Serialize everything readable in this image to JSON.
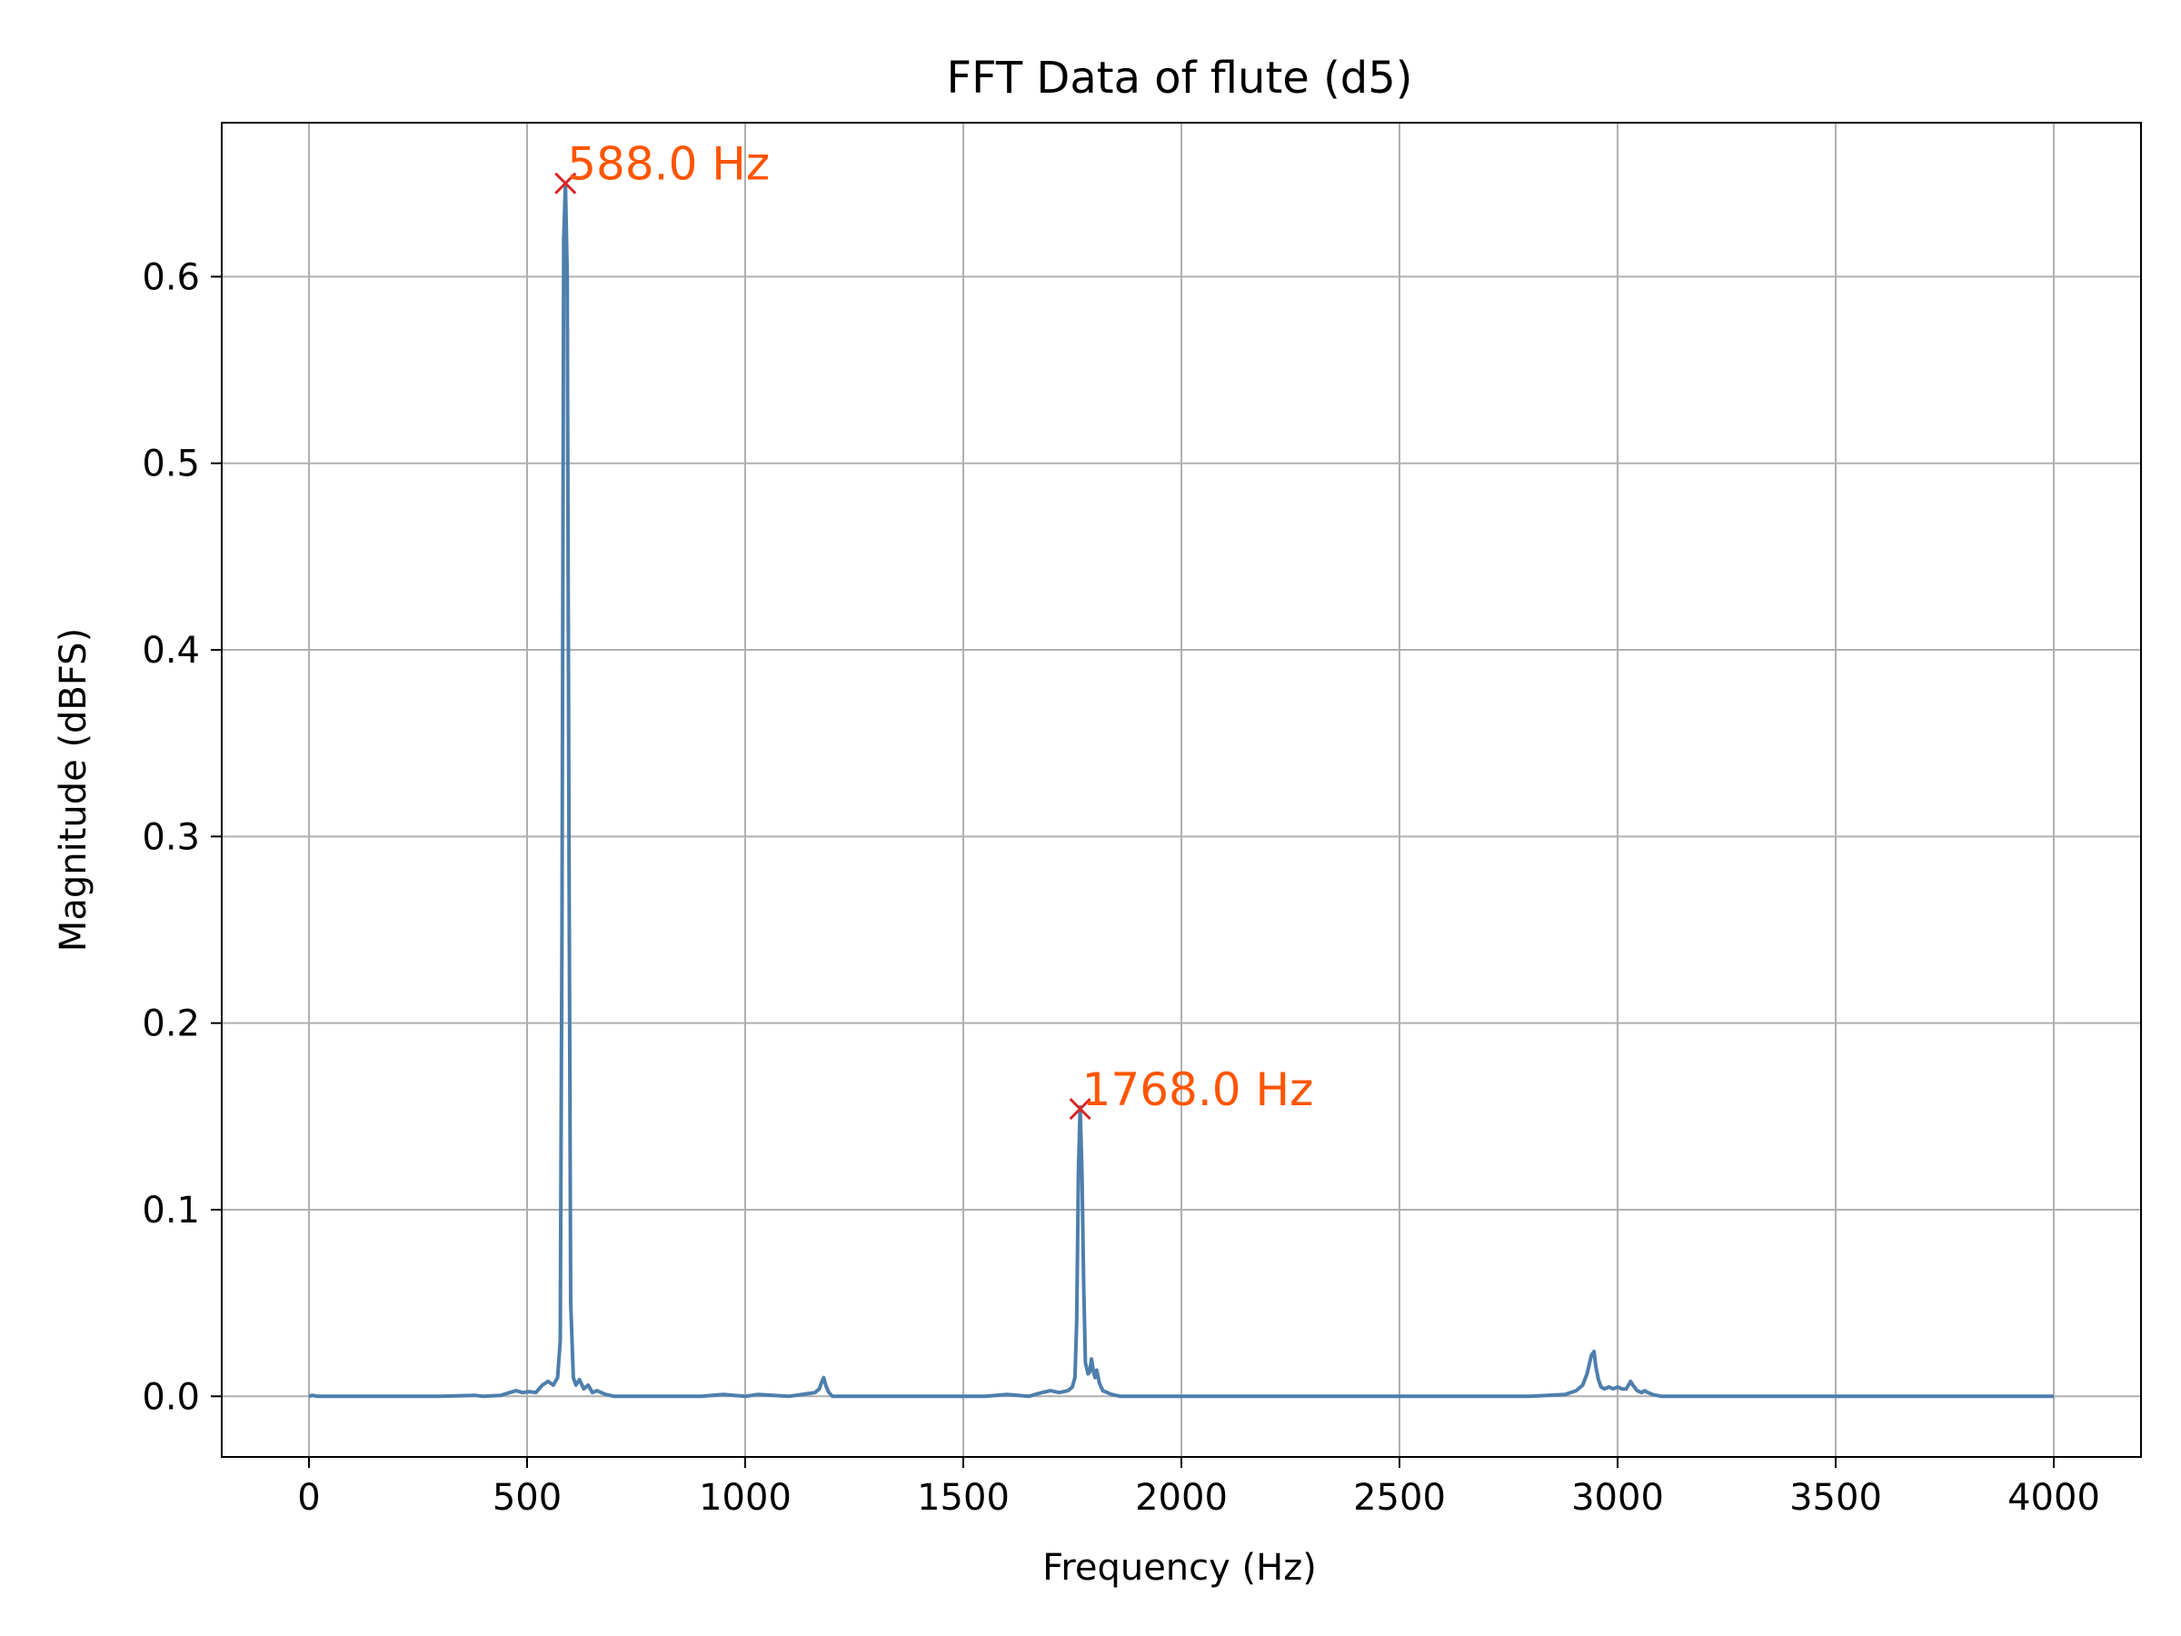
{
  "chart_data": {
    "type": "line",
    "title": "FFT Data of flute (d5)",
    "xlabel": "Frequency (Hz)",
    "ylabel": "Magnitude (dBFS)",
    "xlim": [
      -200,
      4200
    ],
    "ylim": [
      -0.0325,
      0.6825
    ],
    "xticks": [
      0,
      500,
      1000,
      1500,
      2000,
      2500,
      3000,
      3500,
      4000
    ],
    "xtick_labels": [
      "0",
      "500",
      "1000",
      "1500",
      "2000",
      "2500",
      "3000",
      "3500",
      "4000"
    ],
    "yticks": [
      0.0,
      0.1,
      0.2,
      0.3,
      0.4,
      0.5,
      0.6
    ],
    "ytick_labels": [
      "0.0",
      "0.1",
      "0.2",
      "0.3",
      "0.4",
      "0.5",
      "0.6"
    ],
    "grid": true,
    "line_color": "#4e7fac",
    "marker_color": "#d62728",
    "annotation_color": "#ff5500",
    "series": [
      {
        "x": [
          0,
          8,
          20,
          100,
          300,
          380,
          400,
          440,
          460,
          475,
          490,
          505,
          520,
          535,
          548,
          560,
          570,
          576,
          580,
          584,
          588,
          592,
          596,
          600,
          606,
          612,
          620,
          630,
          640,
          650,
          660,
          680,
          700,
          800,
          900,
          950,
          1000,
          1030,
          1100,
          1160,
          1170,
          1176,
          1180,
          1186,
          1192,
          1200,
          1250,
          1400,
          1550,
          1600,
          1650,
          1680,
          1700,
          1720,
          1740,
          1750,
          1756,
          1760,
          1764,
          1768,
          1772,
          1776,
          1780,
          1786,
          1790,
          1794,
          1798,
          1802,
          1806,
          1812,
          1820,
          1840,
          1860,
          1900,
          2000,
          2500,
          2800,
          2880,
          2905,
          2920,
          2930,
          2940,
          2946,
          2950,
          2956,
          2962,
          2970,
          2980,
          2990,
          3000,
          3010,
          3020,
          3025,
          3030,
          3035,
          3045,
          3055,
          3062,
          3070,
          3080,
          3100,
          3200,
          3500,
          4000
        ],
        "y": [
          0.0,
          0.0005,
          0.0,
          0.0,
          0.0,
          0.0005,
          0.0,
          0.0005,
          0.002,
          0.003,
          0.002,
          0.0025,
          0.002,
          0.006,
          0.008,
          0.006,
          0.01,
          0.03,
          0.25,
          0.62,
          0.65,
          0.6,
          0.3,
          0.05,
          0.01,
          0.006,
          0.009,
          0.004,
          0.006,
          0.002,
          0.003,
          0.001,
          0.0,
          0.0,
          0.0,
          0.001,
          0.0,
          0.001,
          0.0,
          0.002,
          0.004,
          0.008,
          0.01,
          0.005,
          0.002,
          0.0,
          0.0,
          0.0,
          0.0,
          0.001,
          0.0,
          0.002,
          0.003,
          0.002,
          0.003,
          0.005,
          0.01,
          0.04,
          0.12,
          0.155,
          0.12,
          0.06,
          0.018,
          0.012,
          0.013,
          0.02,
          0.014,
          0.01,
          0.014,
          0.007,
          0.003,
          0.001,
          0.0,
          0.0,
          0.0,
          0.0,
          0.0,
          0.001,
          0.003,
          0.006,
          0.012,
          0.022,
          0.024,
          0.016,
          0.009,
          0.005,
          0.004,
          0.005,
          0.004,
          0.005,
          0.004,
          0.004,
          0.006,
          0.008,
          0.006,
          0.003,
          0.002,
          0.003,
          0.002,
          0.001,
          0.0,
          0.0,
          0.0,
          0.0
        ]
      }
    ],
    "peaks": [
      {
        "x": 588.0,
        "y": 0.65,
        "label": "588.0 Hz"
      },
      {
        "x": 1768.0,
        "y": 0.154,
        "label": "1768.0 Hz"
      }
    ]
  }
}
